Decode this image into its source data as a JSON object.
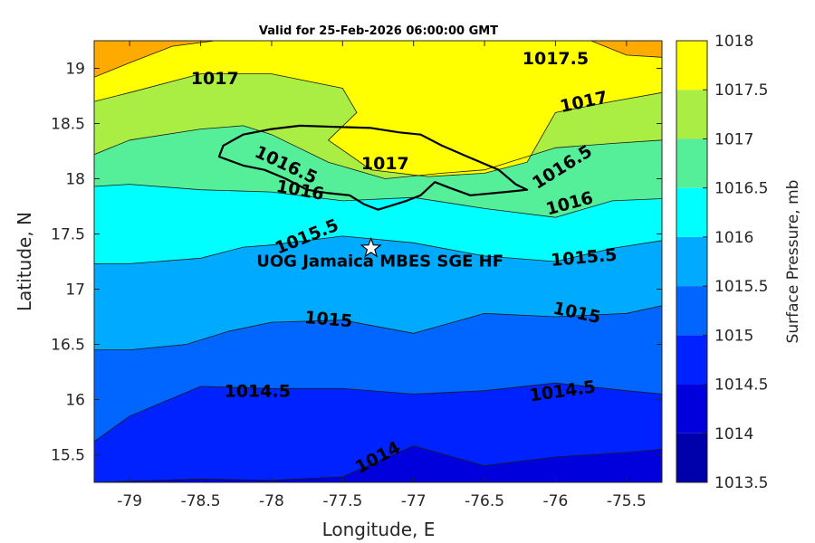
{
  "chart_data": {
    "type": "contour_map",
    "title": "Valid for 25-Feb-2026 06:00:00 GMT",
    "xlabel": "Longitude, E",
    "ylabel": "Latitude, N",
    "xlim": [
      -79.25,
      -75.25
    ],
    "ylim": [
      15.25,
      19.25
    ],
    "xticks": [
      -79,
      -78.5,
      -78,
      -77.5,
      -77,
      -76.5,
      -76,
      -75.5
    ],
    "yticks": [
      15.5,
      16,
      16.5,
      17,
      17.5,
      18,
      18.5,
      19
    ],
    "colorbar": {
      "label": "Surface Pressure, mb",
      "levels": [
        1013.5,
        1014,
        1014.5,
        1015,
        1015.5,
        1016,
        1016.5,
        1017,
        1017.5,
        1018
      ],
      "tick_labels": [
        "1013.5",
        "1014",
        "1014.5",
        "1015",
        "1015.5",
        "1016",
        "1016.5",
        "1017",
        "1017.5",
        "1018"
      ],
      "colors": [
        "#0000aa",
        "#0000dd",
        "#0022ff",
        "#0066ff",
        "#00aaff",
        "#00ffff",
        "#55ee99",
        "#aaee44",
        "#ffff00",
        "#ffaa00",
        "#ff5500"
      ]
    },
    "contour_lines": [
      {
        "level": 1014,
        "points": [
          [
            -79.25,
            15.25
          ],
          [
            -78.5,
            15.28
          ],
          [
            -78,
            15.27
          ],
          [
            -77.5,
            15.3
          ],
          [
            -77,
            15.58
          ],
          [
            -76.5,
            15.4
          ],
          [
            -76,
            15.48
          ],
          [
            -75.5,
            15.52
          ],
          [
            -75.25,
            15.55
          ]
        ]
      },
      {
        "level": 1014.5,
        "points": [
          [
            -79.25,
            15.62
          ],
          [
            -79,
            15.85
          ],
          [
            -78.5,
            16.12
          ],
          [
            -78,
            16.1
          ],
          [
            -77.5,
            16.1
          ],
          [
            -77,
            16.05
          ],
          [
            -76.5,
            16.08
          ],
          [
            -76,
            16.15
          ],
          [
            -75.5,
            16.08
          ],
          [
            -75.25,
            16.05
          ]
        ]
      },
      {
        "level": 1015,
        "points": [
          [
            -79.25,
            16.45
          ],
          [
            -79,
            16.45
          ],
          [
            -78.6,
            16.5
          ],
          [
            -78.3,
            16.62
          ],
          [
            -78,
            16.7
          ],
          [
            -77.5,
            16.72
          ],
          [
            -77,
            16.6
          ],
          [
            -76.5,
            16.78
          ],
          [
            -76,
            16.75
          ],
          [
            -75.5,
            16.78
          ],
          [
            -75.25,
            16.85
          ]
        ]
      },
      {
        "level": 1015.5,
        "points": [
          [
            -79.25,
            17.23
          ],
          [
            -79,
            17.23
          ],
          [
            -78.5,
            17.28
          ],
          [
            -78.2,
            17.38
          ],
          [
            -78,
            17.4
          ],
          [
            -77.5,
            17.48
          ],
          [
            -77,
            17.42
          ],
          [
            -76.5,
            17.3
          ],
          [
            -76,
            17.25
          ],
          [
            -75.6,
            17.37
          ],
          [
            -75.25,
            17.44
          ]
        ]
      },
      {
        "level": 1016,
        "points": [
          [
            -79.25,
            17.93
          ],
          [
            -79,
            17.95
          ],
          [
            -78.5,
            17.9
          ],
          [
            -78,
            17.88
          ],
          [
            -77.5,
            17.8
          ],
          [
            -77,
            17.83
          ],
          [
            -76.5,
            17.73
          ],
          [
            -76,
            17.65
          ],
          [
            -75.6,
            17.8
          ],
          [
            -75.25,
            17.82
          ]
        ]
      },
      {
        "level": 1016.5,
        "points": [
          [
            -79.25,
            18.22
          ],
          [
            -79,
            18.35
          ],
          [
            -78.5,
            18.45
          ],
          [
            -78.2,
            18.48
          ],
          [
            -78,
            18.4
          ],
          [
            -77.6,
            18.15
          ],
          [
            -77.2,
            18.0
          ],
          [
            -76.8,
            18.05
          ],
          [
            -76.5,
            18.08
          ],
          [
            -76,
            18.28
          ],
          [
            -75.6,
            18.32
          ],
          [
            -75.25,
            18.35
          ]
        ]
      },
      {
        "level": 1017,
        "points": [
          [
            -79.25,
            18.7
          ],
          [
            -79,
            18.78
          ],
          [
            -78.5,
            18.95
          ],
          [
            -78,
            18.95
          ],
          [
            -77.5,
            18.82
          ],
          [
            -77.4,
            18.6
          ],
          [
            -77.6,
            18.35
          ],
          [
            -77.3,
            18.08
          ],
          [
            -76.9,
            18.02
          ],
          [
            -76.5,
            18.05
          ],
          [
            -76.2,
            18.15
          ],
          [
            -76,
            18.6
          ],
          [
            -75.6,
            18.7
          ],
          [
            -75.25,
            18.78
          ]
        ]
      },
      {
        "level": 1017.5,
        "points": [
          [
            -79.25,
            18.92
          ],
          [
            -79,
            19.05
          ],
          [
            -78.7,
            19.2
          ],
          [
            -78.4,
            19.25
          ]
        ]
      },
      {
        "level": 1017.5,
        "points": [
          [
            -75.75,
            19.25
          ],
          [
            -75.5,
            19.12
          ],
          [
            -75.25,
            19.1
          ]
        ]
      }
    ],
    "contour_labels": [
      {
        "text": "1017.5",
        "lon": -76.0,
        "lat": 19.08,
        "angle": 0
      },
      {
        "text": "1017",
        "lon": -78.4,
        "lat": 18.9,
        "angle": 0
      },
      {
        "text": "1017",
        "lon": -75.8,
        "lat": 18.69,
        "angle": -12
      },
      {
        "text": "1017",
        "lon": -77.2,
        "lat": 18.13,
        "angle": 0
      },
      {
        "text": "1016.5",
        "lon": -77.9,
        "lat": 18.12,
        "angle": 25
      },
      {
        "text": "1016.5",
        "lon": -75.95,
        "lat": 18.1,
        "angle": -32
      },
      {
        "text": "1016",
        "lon": -77.8,
        "lat": 17.89,
        "angle": 10
      },
      {
        "text": "1016",
        "lon": -75.9,
        "lat": 17.77,
        "angle": -15
      },
      {
        "text": "1015.5",
        "lon": -77.75,
        "lat": 17.47,
        "angle": -22
      },
      {
        "text": "1015.5",
        "lon": -75.8,
        "lat": 17.28,
        "angle": -5
      },
      {
        "text": "1015",
        "lon": -77.6,
        "lat": 16.72,
        "angle": 5
      },
      {
        "text": "1015",
        "lon": -75.85,
        "lat": 16.78,
        "angle": 12
      },
      {
        "text": "1014.5",
        "lon": -78.1,
        "lat": 16.07,
        "angle": 0
      },
      {
        "text": "1014.5",
        "lon": -75.95,
        "lat": 16.07,
        "angle": -8
      },
      {
        "text": "1014",
        "lon": -77.25,
        "lat": 15.47,
        "angle": -28
      }
    ],
    "coastline": [
      [
        -78.34,
        18.3
      ],
      [
        -78.2,
        18.4
      ],
      [
        -78.0,
        18.45
      ],
      [
        -77.8,
        18.48
      ],
      [
        -77.55,
        18.47
      ],
      [
        -77.3,
        18.46
      ],
      [
        -77.1,
        18.42
      ],
      [
        -76.95,
        18.4
      ],
      [
        -76.8,
        18.3
      ],
      [
        -76.62,
        18.2
      ],
      [
        -76.4,
        18.08
      ],
      [
        -76.28,
        17.95
      ],
      [
        -76.2,
        17.9
      ],
      [
        -76.35,
        17.88
      ],
      [
        -76.6,
        17.85
      ],
      [
        -76.75,
        17.92
      ],
      [
        -76.85,
        17.97
      ],
      [
        -76.95,
        17.85
      ],
      [
        -77.05,
        17.8
      ],
      [
        -77.15,
        17.76
      ],
      [
        -77.25,
        17.72
      ],
      [
        -77.35,
        17.77
      ],
      [
        -77.45,
        17.85
      ],
      [
        -77.6,
        17.87
      ],
      [
        -77.75,
        17.9
      ],
      [
        -77.9,
        18.0
      ],
      [
        -78.05,
        18.08
      ],
      [
        -78.2,
        18.12
      ],
      [
        -78.37,
        18.2
      ],
      [
        -78.34,
        18.3
      ]
    ],
    "site": {
      "name": "UOG Jamaica MBES SGE HF",
      "lon": -77.3,
      "lat": 17.37
    }
  }
}
